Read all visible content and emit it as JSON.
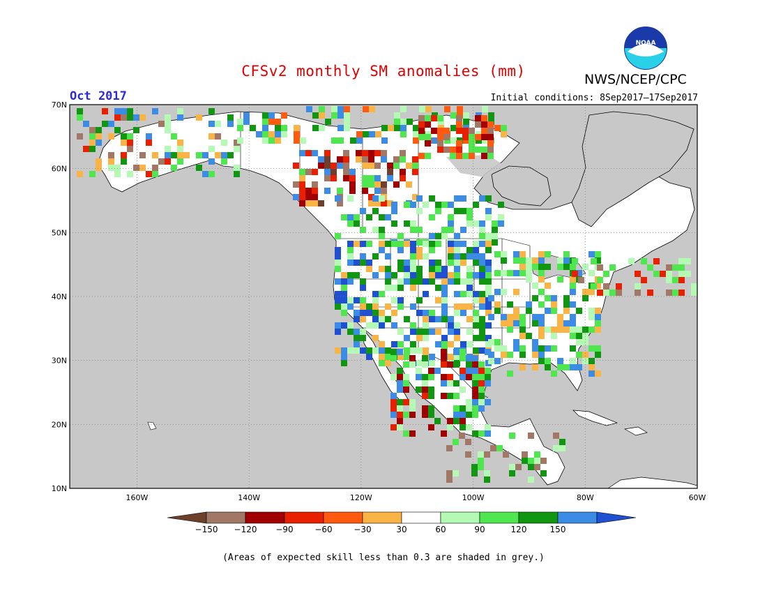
{
  "title": "CFSv2 monthly SM anomalies (mm)",
  "agency": "NWS/NCEP/CPC",
  "logo_text": "NOAA",
  "valid_month": "Oct 2017",
  "initial_conditions": "Initial conditions: 8Sep2017–17Sep2017",
  "footnote": "(Areas of expected skill less than 0.3 are shaded in grey.)",
  "map": {
    "lon_range": [
      -172,
      -60
    ],
    "lat_range": [
      10,
      70
    ],
    "lat_labels": [
      "70N",
      "60N",
      "50N",
      "40N",
      "30N",
      "20N",
      "10N"
    ],
    "lat_values": [
      70,
      60,
      50,
      40,
      30,
      20,
      10
    ],
    "lon_labels": [
      "160W",
      "140W",
      "120W",
      "100W",
      "80W",
      "60W"
    ],
    "lon_values": [
      -160,
      -140,
      -120,
      -100,
      -80,
      -60
    ],
    "grid": "dotted",
    "background_color": "#c8c8c8",
    "land_color": "#ffffff"
  },
  "colorbar": {
    "labels": [
      "−150",
      "−120",
      "−90",
      "−60",
      "−30",
      "30",
      "60",
      "90",
      "120",
      "150"
    ],
    "colors": [
      "#6e3f2b",
      "#a07865",
      "#a00000",
      "#e82000",
      "#ff5a10",
      "#fab445",
      "#ffffff",
      "#b4fab4",
      "#50e650",
      "#109610",
      "#3c8ce6",
      "#2050d2"
    ]
  }
}
